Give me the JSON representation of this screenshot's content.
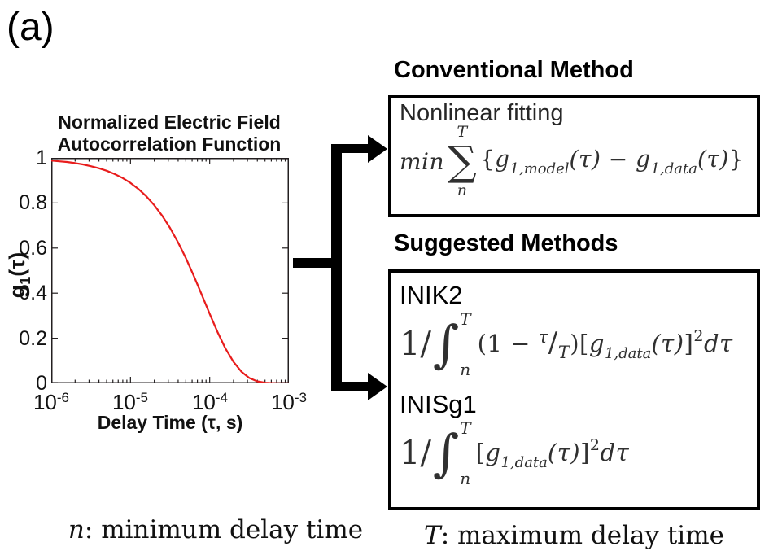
{
  "panel_label": "(a)",
  "chart": {
    "title_line1": "Normalized Electric Field",
    "title_line2": "Autocorrelation Function",
    "ylabel": {
      "base": "g",
      "sub": "1",
      "suffix": "(τ)"
    },
    "xlabel": "Delay Time (τ, s)",
    "ytick_labels": [
      "1",
      "0.8",
      "0.6",
      "0.4",
      "0.2",
      "0"
    ],
    "xtick_labels": [
      {
        "base": "10",
        "exp": "-6"
      },
      {
        "base": "10",
        "exp": "-5"
      },
      {
        "base": "10",
        "exp": "-4"
      },
      {
        "base": "10",
        "exp": "-3"
      }
    ]
  },
  "chart_data": {
    "type": "line",
    "title": "Normalized Electric Field Autocorrelation Function",
    "xlabel": "Delay Time (τ, s)",
    "ylabel": "g1(τ)",
    "x_scale": "log",
    "xlim": [
      1e-06,
      0.001
    ],
    "ylim": [
      0,
      1
    ],
    "x_ticks": [
      "10^-6",
      "10^-5",
      "10^-4",
      "10^-3"
    ],
    "y_ticks": [
      0,
      0.2,
      0.4,
      0.6,
      0.8,
      1
    ],
    "grid": false,
    "legend": "none",
    "series": [
      {
        "name": "g1(tau)",
        "color": "#e81c1c",
        "x": [
          1e-06,
          1.26e-06,
          1.58e-06,
          2e-06,
          2.51e-06,
          3.16e-06,
          3.98e-06,
          5.01e-06,
          6.31e-06,
          7.94e-06,
          1e-05,
          1.26e-05,
          1.58e-05,
          2e-05,
          2.51e-05,
          3.16e-05,
          3.98e-05,
          5.01e-05,
          6.31e-05,
          7.94e-05,
          0.0001,
          0.000126,
          0.000158,
          0.0002,
          0.000251,
          0.000316,
          0.000398,
          0.000501,
          0.000631,
          0.000794,
          0.001
        ],
        "y": [
          0.988,
          0.985,
          0.982,
          0.977,
          0.971,
          0.963,
          0.954,
          0.943,
          0.928,
          0.911,
          0.889,
          0.862,
          0.83,
          0.79,
          0.744,
          0.689,
          0.626,
          0.555,
          0.476,
          0.393,
          0.308,
          0.227,
          0.155,
          0.095,
          0.052,
          0.024,
          0.009,
          0.003,
          0.001,
          0.0,
          0.0
        ]
      }
    ]
  },
  "conventional": {
    "title": "Conventional Method",
    "method_name": "Nonlinear fitting",
    "formula": {
      "operator": "min",
      "sum_symbol": "∑",
      "sum_upper": "T",
      "sum_lower": "n",
      "open_brace": "{",
      "term1_base": "g",
      "term1_sub": "1,model",
      "term1_arg": "(τ)",
      "minus": " − ",
      "term2_base": "g",
      "term2_sub": "1,data",
      "term2_arg": "(τ)",
      "close_brace": "}"
    }
  },
  "suggested": {
    "title": "Suggested Methods",
    "methods": [
      {
        "name": "INIK2",
        "formula": {
          "prefix": "1/",
          "int_symbol": "∫",
          "int_upper": "T",
          "int_lower": "n",
          "weight_open": "(1 − ",
          "weight_num": "τ",
          "weight_slash": "/",
          "weight_den": "T",
          "weight_close": ")",
          "open_bracket": "[",
          "term_base": "g",
          "term_sub": "1,data",
          "term_arg": "(τ)",
          "close_bracket": "]",
          "exponent": "2",
          "differential": "dτ"
        }
      },
      {
        "name": "INISg1",
        "formula": {
          "prefix": "1/",
          "int_symbol": "∫",
          "int_upper": "T",
          "int_lower": "n",
          "open_bracket": "[",
          "term_base": "g",
          "term_sub": "1,data",
          "term_arg": "(τ)",
          "close_bracket": "]",
          "exponent": "2",
          "differential": "dτ"
        }
      }
    ]
  },
  "footnotes": {
    "left": {
      "variable": "n",
      "text": ": minimum delay time"
    },
    "right": {
      "variable": "T",
      "text": ": maximum delay time"
    }
  },
  "colors": {
    "curve": "#e81c1c",
    "axis": "#231f20",
    "heading_text": "#000000",
    "formula_text": "#303030",
    "box_border": "#000000",
    "arrow": "#000000",
    "background": "#ffffff"
  }
}
